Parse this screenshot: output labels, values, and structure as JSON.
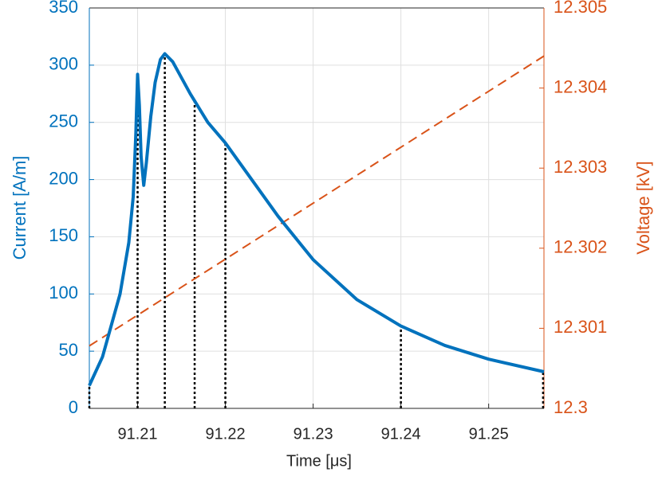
{
  "chart_data": {
    "type": "line",
    "xlabel": "Time [μs]",
    "ylabel": "Current [A/m]",
    "y2label": "Voltage [kV]",
    "xlim": [
      91.2045,
      91.2563
    ],
    "xticks": [
      91.21,
      91.22,
      91.23,
      91.24,
      91.25
    ],
    "ylim": [
      0,
      350
    ],
    "yticks": [
      0,
      50,
      100,
      150,
      200,
      250,
      300,
      350
    ],
    "y2lim": [
      12.3,
      12.305
    ],
    "y2ticks": [
      12.3,
      12.301,
      12.302,
      12.303,
      12.304,
      12.305
    ],
    "grid": true,
    "series": [
      {
        "name": "Current",
        "color": "#0072BD",
        "style": "solid",
        "x": [
          91.2045,
          91.206,
          91.208,
          91.209,
          91.2095,
          91.2098,
          91.21,
          91.2102,
          91.2104,
          91.2107,
          91.211,
          91.2115,
          91.212,
          91.2126,
          91.2131,
          91.214,
          91.216,
          91.218,
          91.22,
          91.223,
          91.226,
          91.23,
          91.235,
          91.24,
          91.245,
          91.25,
          91.2563
        ],
        "values": [
          20,
          45,
          100,
          145,
          185,
          240,
          292,
          265,
          220,
          195,
          215,
          255,
          285,
          305,
          310,
          303,
          275,
          250,
          232,
          200,
          168,
          130,
          95,
          72,
          55,
          43,
          32
        ]
      },
      {
        "name": "Voltage",
        "color": "#D95319",
        "style": "dashed",
        "axis": "y2",
        "x": [
          91.2045,
          91.2563
        ],
        "values": [
          12.30078,
          12.3044
        ]
      }
    ],
    "markers": {
      "color": "#000000",
      "x": [
        91.2045,
        91.21,
        91.2131,
        91.2165,
        91.22,
        91.24,
        91.2562
      ],
      "values": [
        20,
        292,
        310,
        270,
        232,
        72,
        32
      ]
    }
  }
}
